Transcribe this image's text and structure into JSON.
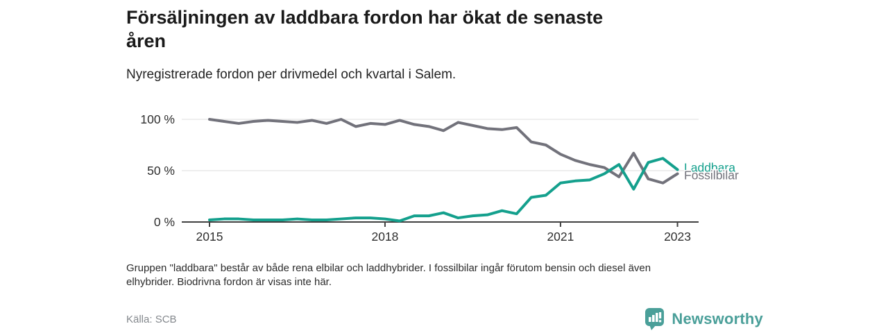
{
  "header": {
    "title_lines": [
      "Försäljningen av laddbara fordon har ökat de senaste",
      "åren"
    ],
    "subtitle": "Nyregistrerade fordon per drivmedel och kvartal i Salem."
  },
  "chart_data": {
    "type": "line",
    "x_unit": "quarter",
    "x": [
      "2015 Q1",
      "2015 Q2",
      "2015 Q3",
      "2015 Q4",
      "2016 Q1",
      "2016 Q2",
      "2016 Q3",
      "2016 Q4",
      "2017 Q1",
      "2017 Q2",
      "2017 Q3",
      "2017 Q4",
      "2018 Q1",
      "2018 Q2",
      "2018 Q3",
      "2018 Q4",
      "2019 Q1",
      "2019 Q2",
      "2019 Q3",
      "2019 Q4",
      "2020 Q1",
      "2020 Q2",
      "2020 Q3",
      "2020 Q4",
      "2021 Q1",
      "2021 Q2",
      "2021 Q3",
      "2021 Q4",
      "2022 Q1",
      "2022 Q2",
      "2022 Q3",
      "2022 Q4",
      "2023 Q1"
    ],
    "series": [
      {
        "name": "Laddbara",
        "color": "#14a08d",
        "values": [
          2,
          3,
          3,
          2,
          2,
          2,
          3,
          2,
          2,
          3,
          4,
          4,
          3,
          1,
          6,
          6,
          9,
          4,
          6,
          7,
          11,
          8,
          24,
          26,
          38,
          40,
          41,
          47,
          56,
          32,
          58,
          62,
          51
        ]
      },
      {
        "name": "Fossilbilar",
        "color": "#72727b",
        "values": [
          100,
          98,
          96,
          98,
          99,
          98,
          97,
          99,
          96,
          100,
          93,
          96,
          95,
          99,
          95,
          93,
          89,
          97,
          94,
          91,
          90,
          92,
          78,
          75,
          66,
          60,
          56,
          53,
          44,
          67,
          42,
          38,
          47
        ]
      }
    ],
    "ylim": [
      0,
      100
    ],
    "yticks": [
      {
        "label": "100 %",
        "value": 100
      },
      {
        "label": "50 %",
        "value": 50
      },
      {
        "label": "0 %",
        "value": 0
      }
    ],
    "xticks": [
      {
        "label": "2015",
        "index": 0
      },
      {
        "label": "2018",
        "index": 12
      },
      {
        "label": "2021",
        "index": 24
      },
      {
        "label": "2023",
        "index": 32
      }
    ],
    "grid": "horizontal",
    "legend": "end-of-line-labels",
    "axis_color": "#404040",
    "grid_color": "#e3e3e3",
    "tick_label_color": "#2e2e2e"
  },
  "notes": {
    "lines": [
      "Gruppen \"laddbara\" består av både rena elbilar och laddhybrider. I fossilbilar ingår förutom bensin och diesel även",
      "elhybrider. Biodrivna fordon är visas inte här."
    ]
  },
  "footer": {
    "source": "Källa: SCB",
    "brand_name": "Newsworthy",
    "brand_color": "#4a9f99"
  }
}
